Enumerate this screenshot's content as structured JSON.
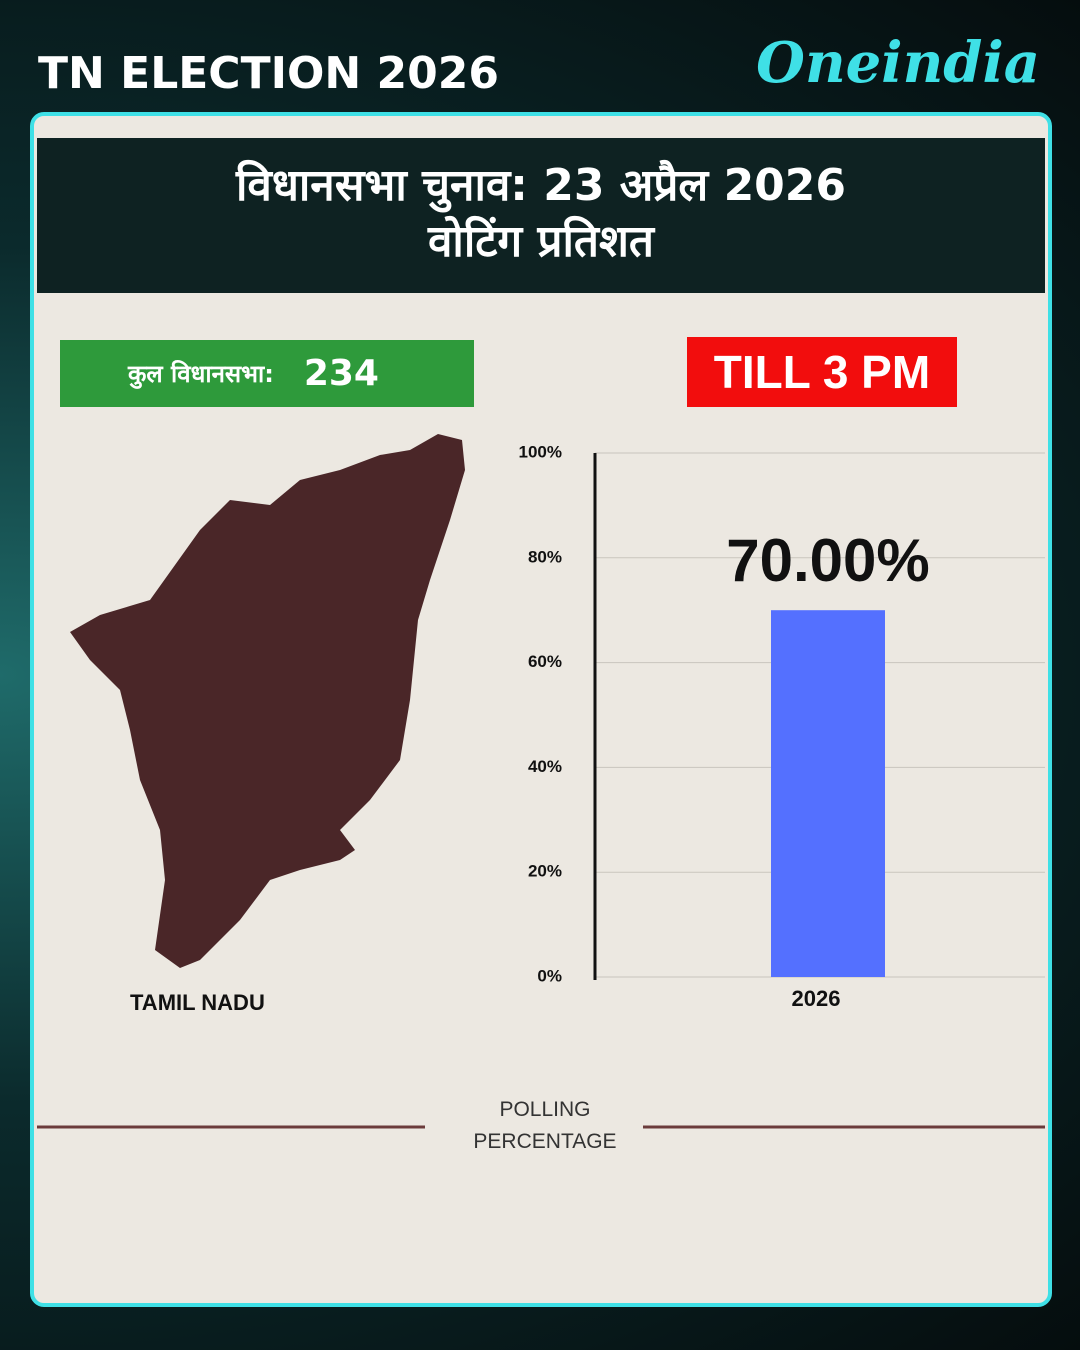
{
  "header": {
    "title": "TN ELECTION 2026",
    "brand": "Oneindia"
  },
  "banner": {
    "line1": "विधानसभा चुनाव:  23 अप्रैल 2026",
    "line2": "वोटिंग प्रतिशत"
  },
  "seats": {
    "label": "कुल विधानसभा:",
    "value": 234
  },
  "time_label": "TILL 3 PM",
  "map_label": "TAMIL NADU",
  "chart_data": {
    "type": "bar",
    "categories": [
      "2026"
    ],
    "values": [
      70
    ],
    "value_labels": [
      "70.00%"
    ],
    "color": "#5470ff",
    "xlabel": "POLLING PERCENTAGE",
    "ylim": [
      0,
      100
    ],
    "yticks": [
      {
        "value": 0,
        "label": "0%"
      },
      {
        "value": 20,
        "label": "20%"
      },
      {
        "value": 40,
        "label": "40%"
      },
      {
        "value": 60,
        "label": "60%"
      },
      {
        "value": 80,
        "label": "80%"
      },
      {
        "value": 100,
        "label": "100%"
      }
    ],
    "grid": true
  }
}
